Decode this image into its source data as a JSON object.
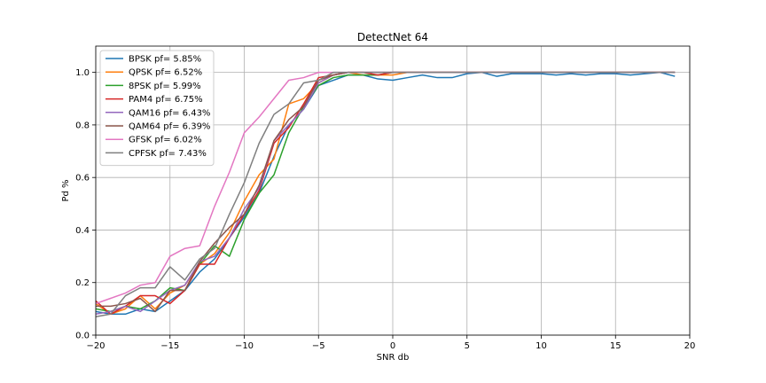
{
  "chart_data": {
    "type": "line",
    "title": "DetectNet 64",
    "xlabel": "SNR db",
    "ylabel": "Pd %",
    "xlim": [
      -20,
      20
    ],
    "ylim": [
      0.0,
      1.1
    ],
    "xticks": [
      -20,
      -15,
      -10,
      -5,
      0,
      5,
      10,
      15,
      20
    ],
    "xtick_labels": [
      "−20",
      "−15",
      "−10",
      "−5",
      "0",
      "5",
      "10",
      "15",
      "20"
    ],
    "yticks": [
      0.0,
      0.2,
      0.4,
      0.6,
      0.8,
      1.0
    ],
    "ytick_labels": [
      "0.0",
      "0.2",
      "0.4",
      "0.6",
      "0.8",
      "1.0"
    ],
    "grid": true,
    "legend_position": "upper-left",
    "x": [
      -20,
      -19,
      -18,
      -17,
      -16,
      -15,
      -14,
      -13,
      -12,
      -11,
      -10,
      -9,
      -8,
      -7,
      -6,
      -5,
      -4,
      -3,
      -2,
      -1,
      0,
      1,
      2,
      3,
      4,
      5,
      6,
      7,
      8,
      9,
      10,
      11,
      12,
      13,
      14,
      15,
      16,
      17,
      18,
      19
    ],
    "series": [
      {
        "name": "BPSK pf= 5.85%",
        "color": "#1f77b4",
        "values": [
          0.09,
          0.08,
          0.08,
          0.1,
          0.09,
          0.13,
          0.17,
          0.24,
          0.29,
          0.37,
          0.45,
          0.54,
          0.68,
          0.8,
          0.86,
          0.95,
          0.97,
          0.99,
          0.99,
          0.975,
          0.97,
          0.98,
          0.99,
          0.98,
          0.98,
          0.995,
          1.0,
          0.985,
          0.995,
          0.995,
          0.995,
          0.99,
          0.995,
          0.99,
          0.995,
          0.995,
          0.99,
          0.995,
          1.0,
          0.985
        ]
      },
      {
        "name": "QPSK pf= 6.52%",
        "color": "#ff7f0e",
        "values": [
          0.12,
          0.08,
          0.1,
          0.15,
          0.1,
          0.16,
          0.19,
          0.27,
          0.31,
          0.39,
          0.51,
          0.61,
          0.67,
          0.88,
          0.9,
          0.96,
          0.99,
          1.0,
          0.99,
          0.99,
          0.99,
          1.0,
          1.0,
          1.0,
          1.0,
          1.0,
          1.0,
          1.0,
          1.0,
          1.0,
          1.0,
          1.0,
          1.0,
          1.0,
          1.0,
          1.0,
          1.0,
          1.0,
          1.0,
          1.0
        ]
      },
      {
        "name": "8PSK pf= 5.99%",
        "color": "#2ca02c",
        "values": [
          0.1,
          0.09,
          0.11,
          0.1,
          0.13,
          0.18,
          0.17,
          0.27,
          0.34,
          0.3,
          0.44,
          0.54,
          0.61,
          0.77,
          0.87,
          0.95,
          0.98,
          0.99,
          0.99,
          0.99,
          1.0,
          1.0,
          1.0,
          1.0,
          1.0,
          1.0,
          1.0,
          1.0,
          1.0,
          1.0,
          1.0,
          1.0,
          1.0,
          1.0,
          1.0,
          1.0,
          1.0,
          1.0,
          1.0,
          1.0
        ]
      },
      {
        "name": "PAM4 pf= 6.75%",
        "color": "#d62728",
        "values": [
          0.13,
          0.08,
          0.11,
          0.15,
          0.15,
          0.12,
          0.17,
          0.27,
          0.27,
          0.37,
          0.46,
          0.55,
          0.73,
          0.79,
          0.88,
          0.98,
          0.99,
          1.0,
          1.0,
          0.99,
          1.0,
          1.0,
          1.0,
          1.0,
          1.0,
          1.0,
          1.0,
          1.0,
          1.0,
          1.0,
          1.0,
          1.0,
          1.0,
          1.0,
          1.0,
          1.0,
          1.0,
          1.0,
          1.0,
          1.0
        ]
      },
      {
        "name": "QAM16 pf= 6.43%",
        "color": "#9467bd",
        "values": [
          0.08,
          0.09,
          0.11,
          0.09,
          0.13,
          0.17,
          0.19,
          0.28,
          0.3,
          0.37,
          0.48,
          0.56,
          0.74,
          0.8,
          0.86,
          0.96,
          0.99,
          1.0,
          1.0,
          1.0,
          1.0,
          1.0,
          1.0,
          1.0,
          1.0,
          1.0,
          1.0,
          1.0,
          1.0,
          1.0,
          1.0,
          1.0,
          1.0,
          1.0,
          1.0,
          1.0,
          1.0,
          1.0,
          1.0,
          1.0
        ]
      },
      {
        "name": "QAM64 pf= 6.39%",
        "color": "#8c564b",
        "values": [
          0.11,
          0.11,
          0.12,
          0.14,
          0.09,
          0.17,
          0.17,
          0.28,
          0.35,
          0.41,
          0.46,
          0.57,
          0.74,
          0.82,
          0.87,
          0.97,
          0.99,
          1.0,
          1.0,
          1.0,
          1.0,
          1.0,
          1.0,
          1.0,
          1.0,
          1.0,
          1.0,
          1.0,
          1.0,
          1.0,
          1.0,
          1.0,
          1.0,
          1.0,
          1.0,
          1.0,
          1.0,
          1.0,
          1.0,
          1.0
        ]
      },
      {
        "name": "GFSK pf= 6.02%",
        "color": "#e377c2",
        "values": [
          0.12,
          0.14,
          0.16,
          0.19,
          0.2,
          0.3,
          0.33,
          0.34,
          0.49,
          0.62,
          0.77,
          0.83,
          0.9,
          0.97,
          0.98,
          1.0,
          1.0,
          1.0,
          1.0,
          1.0,
          1.0,
          1.0,
          1.0,
          1.0,
          1.0,
          1.0,
          1.0,
          1.0,
          1.0,
          1.0,
          1.0,
          1.0,
          1.0,
          1.0,
          1.0,
          1.0,
          1.0,
          1.0,
          1.0,
          1.0
        ]
      },
      {
        "name": "CPFSK pf= 7.43%",
        "color": "#7f7f7f",
        "values": [
          0.07,
          0.08,
          0.15,
          0.18,
          0.18,
          0.26,
          0.21,
          0.29,
          0.33,
          0.46,
          0.58,
          0.73,
          0.84,
          0.88,
          0.96,
          0.97,
          1.0,
          1.0,
          1.0,
          1.0,
          1.0,
          1.0,
          1.0,
          1.0,
          1.0,
          1.0,
          1.0,
          1.0,
          1.0,
          1.0,
          1.0,
          1.0,
          1.0,
          1.0,
          1.0,
          1.0,
          1.0,
          1.0,
          1.0,
          1.0
        ]
      }
    ]
  }
}
